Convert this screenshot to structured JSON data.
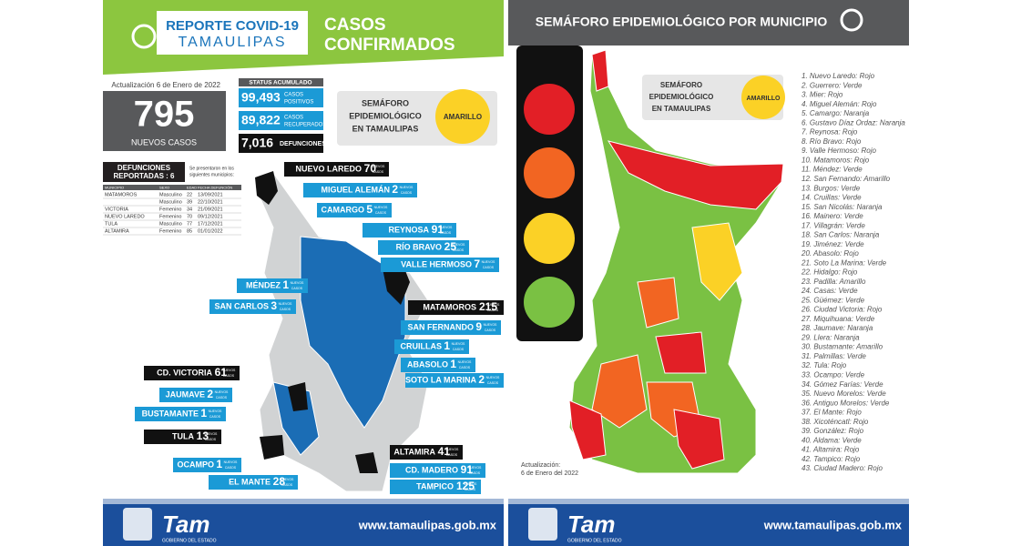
{
  "left": {
    "header": {
      "logo_line1": "REPORTE COVID-19",
      "logo_line2": "TAMAULIPAS",
      "title_line1": "CASOS",
      "title_line2": "CONFIRMADOS"
    },
    "update": "Actualización 6 de Enero de 2022",
    "new_cases": "795",
    "new_cases_label": "NUEVOS CASOS",
    "status": {
      "title": "STATUS ACUMULADO",
      "items": [
        {
          "value": "99,493",
          "label1": "CASOS",
          "label2": "POSITIVOS"
        },
        {
          "value": "89,822",
          "label1": "CASOS",
          "label2": "RECUPERADOS"
        },
        {
          "value": "7,016",
          "label1": "DEFUNCIONES",
          "label2": ""
        }
      ]
    },
    "semaforo": {
      "line1": "SEMÁFORO",
      "line2": "EPIDEMIOLÓGICO",
      "line3": "EN TAMAULIPAS",
      "level": "AMARILLO"
    },
    "deaths": {
      "title1": "DEFUNCIONES",
      "title2": "REPORTADAS : 6",
      "note1": "Se presentaron en los",
      "note2": "siguientes municipios:",
      "columns": [
        "MUNICIPIO",
        "SEXO",
        "EDAD",
        "FECHA DEFUNCIÓN"
      ],
      "rows": [
        [
          "MATAMOROS",
          "Masculino",
          "22",
          "13/09/2021"
        ],
        [
          "",
          "Masculino",
          "39",
          "22/10/2021"
        ],
        [
          "VICTORIA",
          "Femenino",
          "34",
          "21/09/2021"
        ],
        [
          "NUEVO LAREDO",
          "Femenino",
          "70",
          "09/12/2021"
        ],
        [
          "TULA",
          "Masculino",
          "77",
          "17/12/2021"
        ],
        [
          "ALTAMIRA",
          "Femenino",
          "85",
          "01/01/2022"
        ]
      ]
    },
    "case_unit1": "NUEVOS",
    "case_unit2": "CASOS",
    "municipalities": [
      {
        "name": "NUEVO LAREDO",
        "cases": "70"
      },
      {
        "name": "MIGUEL ALEMÁN",
        "cases": "2"
      },
      {
        "name": "CAMARGO",
        "cases": "5"
      },
      {
        "name": "REYNOSA",
        "cases": "91"
      },
      {
        "name": "RÍO BRAVO",
        "cases": "25"
      },
      {
        "name": "VALLE HERMOSO",
        "cases": "7"
      },
      {
        "name": "MÉNDEZ",
        "cases": "1"
      },
      {
        "name": "MATAMOROS",
        "cases": "215"
      },
      {
        "name": "SAN CARLOS",
        "cases": "3"
      },
      {
        "name": "SAN FERNANDO",
        "cases": "9"
      },
      {
        "name": "CRUILLAS",
        "cases": "1"
      },
      {
        "name": "ABASOLO",
        "cases": "1"
      },
      {
        "name": "CD. VICTORIA",
        "cases": "61"
      },
      {
        "name": "SOTO LA MARINA",
        "cases": "2"
      },
      {
        "name": "JAUMAVE",
        "cases": "2"
      },
      {
        "name": "BUSTAMANTE",
        "cases": "1"
      },
      {
        "name": "TULA",
        "cases": "13"
      },
      {
        "name": "OCAMPO",
        "cases": "1"
      },
      {
        "name": "EL MANTE",
        "cases": "28"
      },
      {
        "name": "ALTAMIRA",
        "cases": "41"
      },
      {
        "name": "CD. MADERO",
        "cases": "91"
      },
      {
        "name": "TAMPICO",
        "cases": "125"
      }
    ]
  },
  "right": {
    "title": "SEMÁFORO EPIDEMIOLÓGICO POR MUNICIPIO",
    "semaforo": {
      "line1": "SEMÁFORO",
      "line2": "EPIDEMIOLÓGICO",
      "line3": "EN TAMAULIPAS",
      "level": "AMARILLO"
    },
    "update1": "Actualización:",
    "update2": "6 de Enero del 2022",
    "list": [
      "1. Nuevo Laredo: Rojo",
      "2. Guerrero: Verde",
      "3. Mier: Rojo",
      "4. Miguel Alemán: Rojo",
      "5. Camargo: Naranja",
      "6. Gustavo Díaz Ordaz: Naranja",
      "7. Reynosa: Rojo",
      "8. Río Bravo: Rojo",
      "9. Valle Hermoso: Rojo",
      "10. Matamoros: Rojo",
      "11. Méndez: Verde",
      "12. San Fernando: Amarillo",
      "13. Burgos: Verde",
      "14. Cruillas: Verde",
      "15. San Nicolás: Naranja",
      "16. Mainero: Verde",
      "17. Villagrán: Verde",
      "18. San Carlos: Naranja",
      "19. Jiménez: Verde",
      "20. Abasolo: Rojo",
      "21. Soto La Marina: Verde",
      "22. Hidalgo: Rojo",
      "23. Padilla: Amarillo",
      "24. Casas: Verde",
      "25. Güémez: Verde",
      "26. Ciudad Victoria: Rojo",
      "27. Miquihuana: Verde",
      "28. Jaumave: Naranja",
      "29. Llera: Naranja",
      "30. Bustamante: Amarillo",
      "31. Palmillas: Verde",
      "32. Tula: Rojo",
      "33. Ocampo: Verde",
      "34. Gómez Farías: Verde",
      "35. Nuevo Morelos: Verde",
      "36. Antiguo Morelos: Verde",
      "37. El Mante: Rojo",
      "38. Xicoténcatl: Rojo",
      "39. González: Rojo",
      "40. Aldama: Verde",
      "41. Altamira: Rojo",
      "42. Tampico: Rojo",
      "43. Ciudad Madero: Rojo"
    ]
  },
  "footer": {
    "logo": "Tam",
    "logo_sub": "GOBIERNO DEL ESTADO",
    "url": "www.tamaulipas.gob.mx"
  }
}
